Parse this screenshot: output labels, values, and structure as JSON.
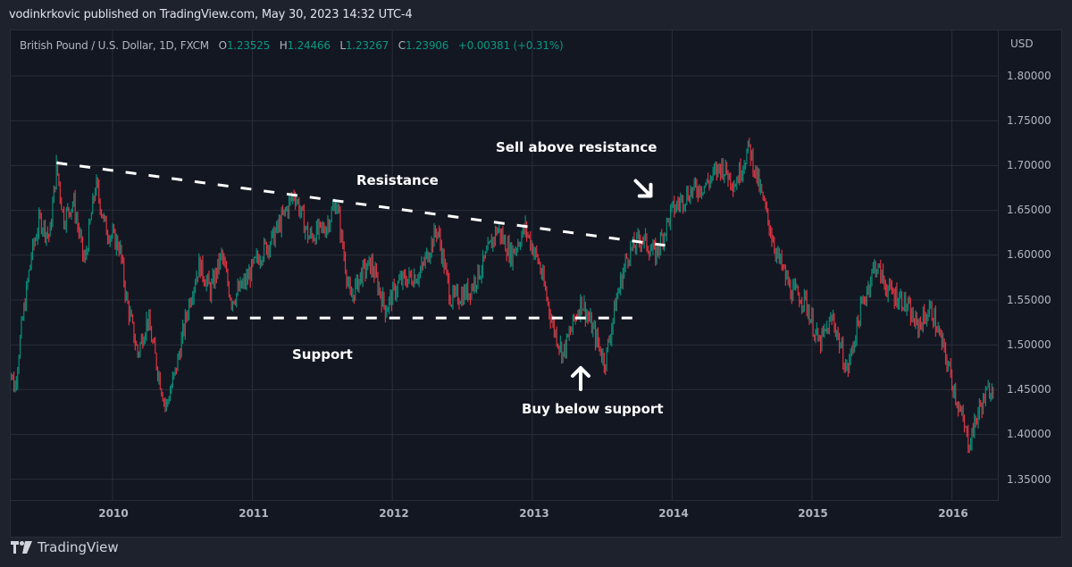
{
  "header": {
    "publisher_line": "vodinkrkovic published on TradingView.com, May 30, 2023 14:32 UTC-4"
  },
  "legend": {
    "symbol": "British Pound / U.S. Dollar, 1D, FXCM",
    "open_label": "O",
    "open": "1.23525",
    "high_label": "H",
    "high": "1.24466",
    "low_label": "L",
    "low": "1.23267",
    "close_label": "C",
    "close": "1.23906",
    "change": "+0.00381",
    "change_pct": "(+0.31%)"
  },
  "price_axis": {
    "currency": "USD",
    "ticks": [
      "1.80000",
      "1.75000",
      "1.70000",
      "1.65000",
      "1.60000",
      "1.55000",
      "1.50000",
      "1.45000",
      "1.40000",
      "1.35000"
    ]
  },
  "time_axis": {
    "ticks": [
      "2010",
      "2011",
      "2012",
      "2013",
      "2014",
      "2015",
      "2016"
    ]
  },
  "annotations": {
    "resistance": "Resistance",
    "support": "Support",
    "sell": "Sell above resistance",
    "buy": "Buy below support"
  },
  "footer": {
    "brand": "TradingView"
  },
  "colors": {
    "up": "#089981",
    "down": "#f23645",
    "grid": "#2a2e39",
    "background": "#131722",
    "frame": "#1e222d",
    "annotation": "#ffffff"
  },
  "chart_data": {
    "type": "candlestick",
    "title": "British Pound / U.S. Dollar, 1D, FXCM",
    "xlabel": "",
    "ylabel": "USD",
    "ylim": [
      1.33,
      1.84
    ],
    "x_range": [
      "2009-04",
      "2016-05"
    ],
    "grid": true,
    "x_ticks": [
      "2010",
      "2011",
      "2012",
      "2013",
      "2014",
      "2015",
      "2016"
    ],
    "y_ticks": [
      1.35,
      1.4,
      1.45,
      1.5,
      1.55,
      1.6,
      1.65,
      1.7,
      1.75,
      1.8
    ],
    "last_bar": {
      "open": 1.23525,
      "high": 1.24466,
      "low": 1.23267,
      "close": 1.23906,
      "change": 0.00381,
      "change_pct": 0.31
    },
    "price_path": [
      {
        "date": "2009.25",
        "price": 1.49
      },
      {
        "date": "2009.30",
        "price": 1.45
      },
      {
        "date": "2009.35",
        "price": 1.52
      },
      {
        "date": "2009.42",
        "price": 1.6
      },
      {
        "date": "2009.48",
        "price": 1.64
      },
      {
        "date": "2009.55",
        "price": 1.62
      },
      {
        "date": "2009.60",
        "price": 1.7
      },
      {
        "date": "2009.65",
        "price": 1.64
      },
      {
        "date": "2009.72",
        "price": 1.66
      },
      {
        "date": "2009.80",
        "price": 1.59
      },
      {
        "date": "2009.88",
        "price": 1.68
      },
      {
        "date": "2009.95",
        "price": 1.63
      },
      {
        "date": "2010.05",
        "price": 1.61
      },
      {
        "date": "2010.10",
        "price": 1.55
      },
      {
        "date": "2010.18",
        "price": 1.49
      },
      {
        "date": "2010.25",
        "price": 1.53
      },
      {
        "date": "2010.30",
        "price": 1.49
      },
      {
        "date": "2010.38",
        "price": 1.43
      },
      {
        "date": "2010.45",
        "price": 1.47
      },
      {
        "date": "2010.55",
        "price": 1.55
      },
      {
        "date": "2010.62",
        "price": 1.59
      },
      {
        "date": "2010.70",
        "price": 1.56
      },
      {
        "date": "2010.78",
        "price": 1.6
      },
      {
        "date": "2010.85",
        "price": 1.55
      },
      {
        "date": "2010.95",
        "price": 1.57
      },
      {
        "date": "2011.05",
        "price": 1.6
      },
      {
        "date": "2011.15",
        "price": 1.62
      },
      {
        "date": "2011.30",
        "price": 1.67
      },
      {
        "date": "2011.40",
        "price": 1.62
      },
      {
        "date": "2011.52",
        "price": 1.63
      },
      {
        "date": "2011.60",
        "price": 1.66
      },
      {
        "date": "2011.70",
        "price": 1.55
      },
      {
        "date": "2011.78",
        "price": 1.58
      },
      {
        "date": "2011.85",
        "price": 1.59
      },
      {
        "date": "2011.95",
        "price": 1.54
      },
      {
        "date": "2012.05",
        "price": 1.57
      },
      {
        "date": "2012.20",
        "price": 1.58
      },
      {
        "date": "2012.32",
        "price": 1.63
      },
      {
        "date": "2012.42",
        "price": 1.55
      },
      {
        "date": "2012.55",
        "price": 1.56
      },
      {
        "date": "2012.65",
        "price": 1.59
      },
      {
        "date": "2012.75",
        "price": 1.63
      },
      {
        "date": "2012.85",
        "price": 1.6
      },
      {
        "date": "2012.95",
        "price": 1.63
      },
      {
        "date": "2013.05",
        "price": 1.59
      },
      {
        "date": "2013.15",
        "price": 1.52
      },
      {
        "date": "2013.22",
        "price": 1.49
      },
      {
        "date": "2013.35",
        "price": 1.55
      },
      {
        "date": "2013.45",
        "price": 1.51
      },
      {
        "date": "2013.52",
        "price": 1.48
      },
      {
        "date": "2013.60",
        "price": 1.55
      },
      {
        "date": "2013.68",
        "price": 1.6
      },
      {
        "date": "2013.78",
        "price": 1.62
      },
      {
        "date": "2013.88",
        "price": 1.6
      },
      {
        "date": "2014.00",
        "price": 1.65
      },
      {
        "date": "2014.12",
        "price": 1.67
      },
      {
        "date": "2014.25",
        "price": 1.68
      },
      {
        "date": "2014.35",
        "price": 1.7
      },
      {
        "date": "2014.45",
        "price": 1.68
      },
      {
        "date": "2014.55",
        "price": 1.72
      },
      {
        "date": "2014.65",
        "price": 1.66
      },
      {
        "date": "2014.75",
        "price": 1.6
      },
      {
        "date": "2014.85",
        "price": 1.56
      },
      {
        "date": "2014.95",
        "price": 1.55
      },
      {
        "date": "2015.05",
        "price": 1.5
      },
      {
        "date": "2015.15",
        "price": 1.53
      },
      {
        "date": "2015.25",
        "price": 1.47
      },
      {
        "date": "2015.35",
        "price": 1.54
      },
      {
        "date": "2015.45",
        "price": 1.59
      },
      {
        "date": "2015.55",
        "price": 1.56
      },
      {
        "date": "2015.65",
        "price": 1.55
      },
      {
        "date": "2015.75",
        "price": 1.52
      },
      {
        "date": "2015.85",
        "price": 1.54
      },
      {
        "date": "2015.95",
        "price": 1.49
      },
      {
        "date": "2016.05",
        "price": 1.43
      },
      {
        "date": "2016.12",
        "price": 1.39
      },
      {
        "date": "2016.20",
        "price": 1.43
      },
      {
        "date": "2016.30",
        "price": 1.46
      }
    ],
    "trendlines": [
      {
        "name": "Resistance",
        "style": "dashed",
        "from": {
          "date": "2009.60",
          "price": 1.703
        },
        "to": {
          "date": "2013.95",
          "price": 1.611
        }
      },
      {
        "name": "Support",
        "style": "dashed",
        "from": {
          "date": "2010.65",
          "price": 1.53
        },
        "to": {
          "date": "2013.75",
          "price": 1.53
        }
      }
    ]
  }
}
